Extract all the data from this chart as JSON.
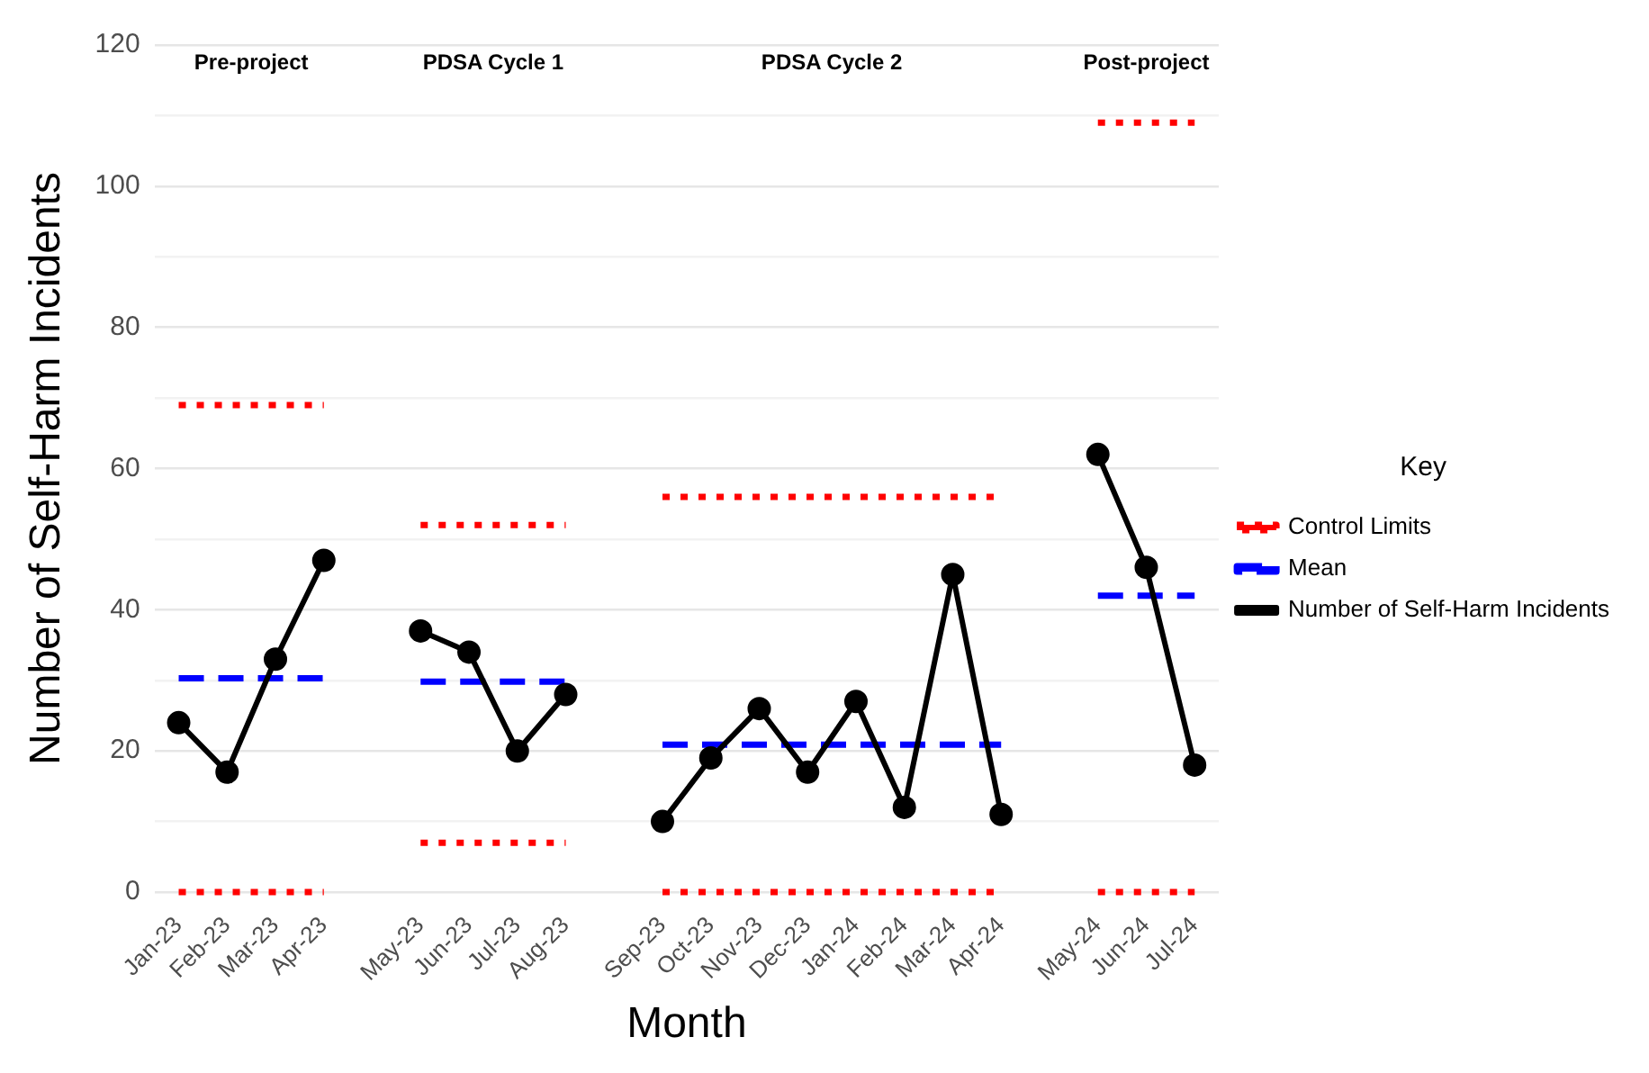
{
  "chart_data": {
    "type": "line",
    "xlabel": "Month",
    "ylabel": "Number of Self-Harm Incidents",
    "legend_title": "Key",
    "legend": "right",
    "grid": "y",
    "categories": [
      "Jan-23",
      "Feb-23",
      "Mar-23",
      "Apr-23",
      null,
      "May-23",
      "Jun-23",
      "Jul-23",
      "Aug-23",
      null,
      "Sep-23",
      "Oct-23",
      "Nov-23",
      "Dec-23",
      "Jan-24",
      "Feb-24",
      "Mar-24",
      "Apr-24",
      null,
      "May-24",
      "Jun-24",
      "Jul-24"
    ],
    "annotations": [
      "Pre-project",
      "PDSA Cycle 1",
      "PDSA Cycle 2",
      "Post-project"
    ],
    "ylim": [
      0,
      120
    ],
    "yticks": [
      0,
      {
        "value": 10,
        "label": null
      },
      20,
      {
        "value": 30,
        "label": null
      },
      40,
      {
        "value": 50,
        "label": null
      },
      60,
      {
        "value": 70,
        "label": null
      },
      80,
      {
        "value": 90,
        "label": null
      },
      100,
      {
        "value": 110,
        "label": null
      },
      120
    ],
    "series": [
      {
        "name": "Control Limits",
        "color": "#ff0000",
        "line_style": "dotted",
        "marker": "none",
        "values": [
          69,
          69,
          69,
          69,
          null,
          52,
          52,
          52,
          52,
          null,
          56,
          56,
          56,
          56,
          56,
          56,
          56,
          56,
          null,
          109,
          109,
          109
        ]
      },
      {
        "color": "#ff0000",
        "line_style": "dotted",
        "marker": "none",
        "values": [
          0,
          0,
          0,
          0,
          null,
          7,
          7,
          7,
          7,
          null,
          0,
          0,
          0,
          0,
          0,
          0,
          0,
          0,
          null,
          0,
          0,
          0
        ]
      },
      {
        "name": "Mean",
        "color": "#0000ff",
        "line_style": "dashed",
        "marker": "none",
        "values": [
          30.3,
          30.3,
          30.3,
          30.3,
          null,
          29.8,
          29.8,
          29.8,
          29.8,
          null,
          20.9,
          20.9,
          20.9,
          20.9,
          20.9,
          20.9,
          20.9,
          20.9,
          null,
          42,
          42,
          42
        ]
      },
      {
        "name": "Number of Self-Harm Incidents",
        "color": "#000000",
        "line_style": "solid",
        "marker": "circle",
        "values": [
          24,
          17,
          33,
          47,
          null,
          37,
          34,
          20,
          28,
          null,
          10,
          19,
          26,
          17,
          27,
          12,
          45,
          11,
          null,
          62,
          46,
          18
        ]
      }
    ]
  }
}
